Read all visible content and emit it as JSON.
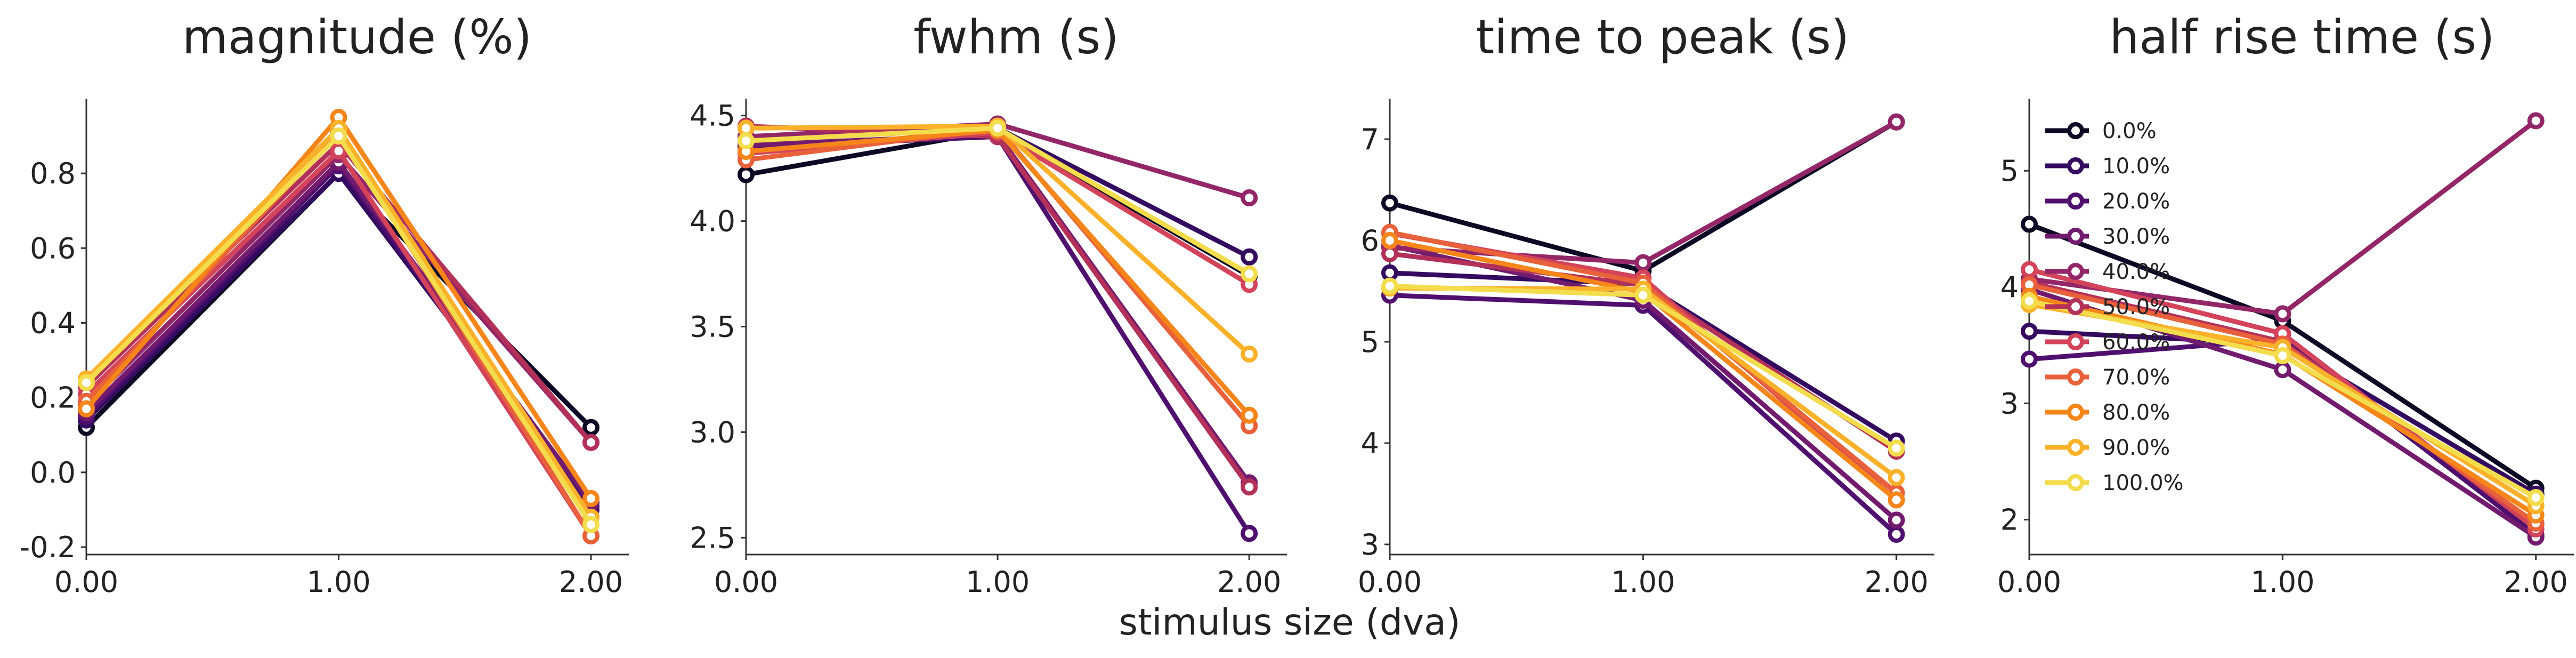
{
  "figure": {
    "xlabel": "stimulus size (dva)"
  },
  "legend": {
    "entries": [
      "0.0%",
      "10.0%",
      "20.0%",
      "30.0%",
      "40.0%",
      "50.0%",
      "60.0%",
      "70.0%",
      "80.0%",
      "90.0%",
      "100.0%"
    ],
    "colors": [
      "#0b0924",
      "#330a5f",
      "#4f0f6f",
      "#721b6e",
      "#932667",
      "#b33159",
      "#d3435a",
      "#e8613b",
      "#f6861a",
      "#fbb22a",
      "#f4dd4d"
    ]
  },
  "chart_data": [
    {
      "type": "line",
      "title": "magnitude (%)",
      "xlabel": "stimulus size (dva)",
      "ylabel": "",
      "xlim": [
        0,
        2.15
      ],
      "ylim": [
        -0.22,
        1.0
      ],
      "x": [
        0,
        1,
        2
      ],
      "xticks": [
        0,
        1,
        2
      ],
      "xtick_labels": [
        "0.00",
        "1.00",
        "2.00"
      ],
      "yticks": [
        -0.2,
        0.0,
        0.2,
        0.4,
        0.6,
        0.8
      ],
      "ytick_labels": [
        "-0.2",
        "0.0",
        "0.2",
        "0.4",
        "0.6",
        "0.8"
      ],
      "series": [
        {
          "name": "0.0%",
          "values": [
            0.12,
            0.8,
            0.12
          ]
        },
        {
          "name": "10.0%",
          "values": [
            0.14,
            0.8,
            -0.09
          ]
        },
        {
          "name": "20.0%",
          "values": [
            0.15,
            0.82,
            -0.1
          ]
        },
        {
          "name": "30.0%",
          "values": [
            0.16,
            0.83,
            -0.08
          ]
        },
        {
          "name": "40.0%",
          "values": [
            0.18,
            0.85,
            0.08
          ]
        },
        {
          "name": "50.0%",
          "values": [
            0.23,
            0.88,
            0.08
          ]
        },
        {
          "name": "60.0%",
          "values": [
            0.21,
            0.86,
            -0.17
          ]
        },
        {
          "name": "70.0%",
          "values": [
            0.19,
            0.91,
            -0.17
          ]
        },
        {
          "name": "80.0%",
          "values": [
            0.17,
            0.95,
            -0.07
          ]
        },
        {
          "name": "90.0%",
          "values": [
            0.25,
            0.92,
            -0.12
          ]
        },
        {
          "name": "100.0%",
          "values": [
            0.24,
            0.9,
            -0.14
          ]
        }
      ]
    },
    {
      "type": "line",
      "title": "fwhm (s)",
      "xlabel": "stimulus size (dva)",
      "ylabel": "",
      "xlim": [
        0,
        2.15
      ],
      "ylim": [
        2.42,
        4.58
      ],
      "x": [
        0,
        1,
        2
      ],
      "xticks": [
        0,
        1,
        2
      ],
      "xtick_labels": [
        "0.00",
        "1.00",
        "2.00"
      ],
      "yticks": [
        2.5,
        3.0,
        3.5,
        4.0,
        4.5
      ],
      "ytick_labels": [
        "2.5",
        "3.0",
        "3.5",
        "4.0",
        "4.5"
      ],
      "series": [
        {
          "name": "0.0%",
          "values": [
            4.22,
            4.43,
            3.74
          ]
        },
        {
          "name": "10.0%",
          "values": [
            4.38,
            4.44,
            3.83
          ]
        },
        {
          "name": "20.0%",
          "values": [
            4.35,
            4.4,
            2.52
          ]
        },
        {
          "name": "30.0%",
          "values": [
            4.36,
            4.41,
            2.76
          ]
        },
        {
          "name": "40.0%",
          "values": [
            4.4,
            4.46,
            4.11
          ]
        },
        {
          "name": "50.0%",
          "values": [
            4.45,
            4.4,
            2.74
          ]
        },
        {
          "name": "60.0%",
          "values": [
            4.32,
            4.42,
            3.7
          ]
        },
        {
          "name": "70.0%",
          "values": [
            4.29,
            4.44,
            3.03
          ]
        },
        {
          "name": "80.0%",
          "values": [
            4.33,
            4.43,
            3.08
          ]
        },
        {
          "name": "90.0%",
          "values": [
            4.44,
            4.45,
            3.37
          ]
        },
        {
          "name": "100.0%",
          "values": [
            4.38,
            4.44,
            3.75
          ]
        }
      ]
    },
    {
      "type": "line",
      "title": "time to peak (s)",
      "xlabel": "stimulus size (dva)",
      "ylabel": "",
      "xlim": [
        0,
        2.15
      ],
      "ylim": [
        2.9,
        7.4
      ],
      "x": [
        0,
        1,
        2
      ],
      "xticks": [
        0,
        1,
        2
      ],
      "xtick_labels": [
        "0.00",
        "1.00",
        "2.00"
      ],
      "yticks": [
        3,
        4,
        5,
        6,
        7
      ],
      "ytick_labels": [
        "3",
        "4",
        "5",
        "6",
        "7"
      ],
      "series": [
        {
          "name": "0.0%",
          "values": [
            6.37,
            5.7,
            7.17
          ]
        },
        {
          "name": "10.0%",
          "values": [
            5.68,
            5.57,
            4.02
          ]
        },
        {
          "name": "20.0%",
          "values": [
            5.46,
            5.36,
            3.1
          ]
        },
        {
          "name": "30.0%",
          "values": [
            5.95,
            5.41,
            3.24
          ]
        },
        {
          "name": "40.0%",
          "values": [
            5.93,
            5.78,
            7.17
          ]
        },
        {
          "name": "50.0%",
          "values": [
            5.87,
            5.56,
            3.92
          ]
        },
        {
          "name": "60.0%",
          "values": [
            6.07,
            5.63,
            3.44
          ]
        },
        {
          "name": "70.0%",
          "values": [
            6.08,
            5.58,
            3.51
          ]
        },
        {
          "name": "80.0%",
          "values": [
            6.0,
            5.49,
            3.44
          ]
        },
        {
          "name": "90.0%",
          "values": [
            5.53,
            5.52,
            3.66
          ]
        },
        {
          "name": "100.0%",
          "values": [
            5.55,
            5.46,
            3.95
          ]
        }
      ]
    },
    {
      "type": "line",
      "title": "half rise time (s)",
      "xlabel": "stimulus size (dva)",
      "ylabel": "",
      "xlim": [
        0,
        2.15
      ],
      "ylim": [
        1.7,
        5.62
      ],
      "x": [
        0,
        1,
        2
      ],
      "xticks": [
        0,
        1,
        2
      ],
      "xtick_labels": [
        "0.00",
        "1.00",
        "2.00"
      ],
      "yticks": [
        2,
        3,
        4,
        5
      ],
      "ytick_labels": [
        "2",
        "3",
        "4",
        "5"
      ],
      "series": [
        {
          "name": "0.0%",
          "values": [
            4.54,
            3.71,
            2.27
          ]
        },
        {
          "name": "10.0%",
          "values": [
            3.62,
            3.51,
            2.22
          ]
        },
        {
          "name": "20.0%",
          "values": [
            3.38,
            3.55,
            1.87
          ]
        },
        {
          "name": "30.0%",
          "values": [
            3.98,
            3.29,
            1.85
          ]
        },
        {
          "name": "40.0%",
          "values": [
            4.07,
            3.77,
            5.43
          ]
        },
        {
          "name": "50.0%",
          "values": [
            4.04,
            3.53,
            1.96
          ]
        },
        {
          "name": "60.0%",
          "values": [
            4.15,
            3.6,
            1.92
          ]
        },
        {
          "name": "70.0%",
          "values": [
            4.02,
            3.51,
            1.97
          ]
        },
        {
          "name": "80.0%",
          "values": [
            3.92,
            3.42,
            2.04
          ]
        },
        {
          "name": "90.0%",
          "values": [
            3.85,
            3.48,
            2.12
          ]
        },
        {
          "name": "100.0%",
          "values": [
            3.88,
            3.41,
            2.19
          ]
        }
      ]
    }
  ]
}
